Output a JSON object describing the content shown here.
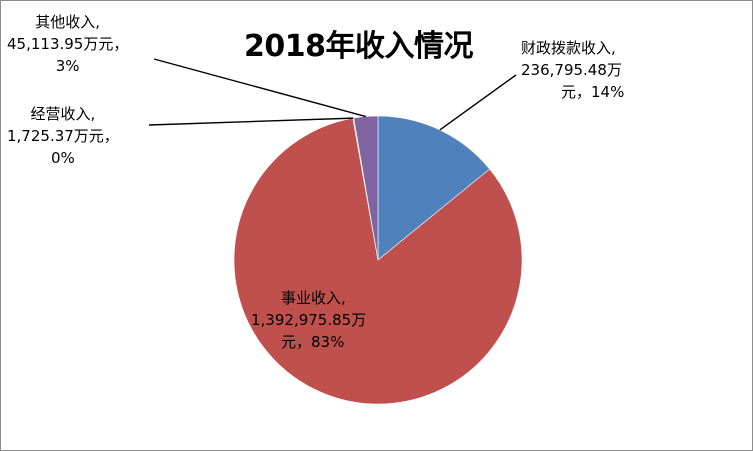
{
  "chart_data": {
    "type": "pie",
    "title": "2018年收入情况",
    "unit": "万元",
    "slices": [
      {
        "name": "财政拨款收入",
        "value": 236795.48,
        "value_text": "236,795.48",
        "percent": "14%",
        "color": "#4f81bd"
      },
      {
        "name": "事业收入",
        "value": 1392975.85,
        "value_text": "1,392,975.85",
        "percent": "83%",
        "color": "#c0504d"
      },
      {
        "name": "经营收入",
        "value": 1725.37,
        "value_text": "1,725.37",
        "percent": "0%",
        "color": "#9bbb59"
      },
      {
        "name": "其他收入",
        "value": 45113.95,
        "value_text": "45,113.95",
        "percent": "3%",
        "color": "#8064a2"
      }
    ]
  },
  "labels": {
    "fiscal": {
      "line1": "财政拨款收入,",
      "line2": "236,795.48万",
      "line3": "元，14%"
    },
    "business": {
      "line1": "事业收入,",
      "line2": "1,392,975.85万",
      "line3": "元，83%"
    },
    "operating": {
      "line1": "经营收入,",
      "line2": "1,725.37万元，",
      "line3": "0%"
    },
    "other": {
      "line1": "其他收入,",
      "line2": "45,113.95万元，",
      "line3": "3%"
    }
  }
}
